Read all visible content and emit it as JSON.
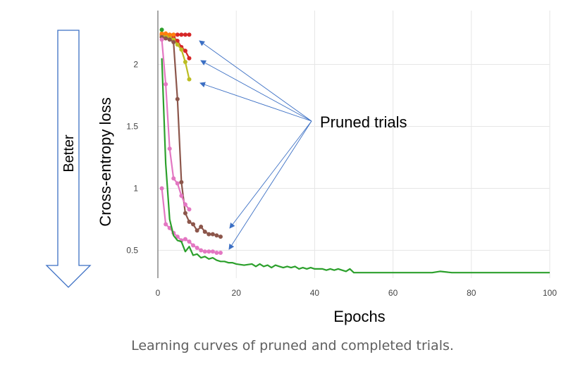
{
  "caption": "Learning curves of pruned and completed trials.",
  "better_label": "Better",
  "annotation": "Pruned trials",
  "chart_data": {
    "type": "line",
    "title": "",
    "xlabel": "Epochs",
    "ylabel": "Cross-entropy loss",
    "xlim": [
      0,
      100
    ],
    "ylim": [
      0.3,
      2.35
    ],
    "grid": true,
    "x_ticks": [
      0,
      20,
      40,
      60,
      80,
      100
    ],
    "y_ticks": [
      0.5,
      1,
      1.5,
      2
    ],
    "x_tick_labels": [
      "0",
      "20",
      "40",
      "60",
      "80",
      "100"
    ],
    "y_tick_labels": [
      "0.5",
      "1",
      "1.5",
      "2"
    ],
    "series": [
      {
        "color": "#d62728",
        "markers": true,
        "x": [
          1,
          2,
          3,
          4,
          5,
          6,
          7,
          8
        ],
        "y": [
          2.24,
          2.24,
          2.24,
          2.24,
          2.24,
          2.24,
          2.24,
          2.24
        ]
      },
      {
        "color": "#d62728",
        "markers": true,
        "x": [
          1,
          2,
          3,
          4,
          5,
          6,
          7,
          8
        ],
        "y": [
          2.22,
          2.22,
          2.22,
          2.22,
          2.19,
          2.14,
          2.11,
          2.05
        ]
      },
      {
        "color": "#bcbd22",
        "markers": true,
        "x": [
          1,
          2,
          3,
          4,
          5,
          6,
          7,
          8
        ],
        "y": [
          2.23,
          2.23,
          2.22,
          2.2,
          2.16,
          2.12,
          2.02,
          1.88
        ]
      },
      {
        "color": "#ff7f0e",
        "markers": true,
        "x": [
          1,
          2,
          3,
          4
        ],
        "y": [
          2.25,
          2.25,
          2.24,
          2.24
        ]
      },
      {
        "color": "#2ca02c",
        "markers": true,
        "x": [
          1
        ],
        "y": [
          2.28
        ]
      },
      {
        "color": "#8c564b",
        "markers": true,
        "x": [
          1,
          2,
          3,
          4,
          5,
          6,
          7,
          8,
          9,
          10,
          11,
          12,
          13,
          14,
          15,
          16
        ],
        "y": [
          2.22,
          2.21,
          2.2,
          2.18,
          1.72,
          1.05,
          0.8,
          0.73,
          0.71,
          0.66,
          0.69,
          0.65,
          0.63,
          0.63,
          0.62,
          0.61
        ]
      },
      {
        "color": "#e377c2",
        "markers": true,
        "x": [
          1,
          2,
          3,
          4,
          5,
          6,
          7,
          8,
          9,
          10,
          11,
          12,
          13,
          14,
          15,
          16
        ],
        "y": [
          1.0,
          0.71,
          0.68,
          0.64,
          0.61,
          0.58,
          0.59,
          0.57,
          0.54,
          0.52,
          0.5,
          0.49,
          0.49,
          0.49,
          0.48,
          0.48
        ]
      },
      {
        "color": "#e377c2",
        "markers": true,
        "x": [
          1,
          2,
          3,
          4,
          5,
          6,
          7,
          8
        ],
        "y": [
          2.2,
          1.84,
          1.32,
          1.08,
          1.04,
          0.94,
          0.87,
          0.83
        ]
      },
      {
        "color": "#2ca02c",
        "markers": false,
        "x": [
          1,
          2,
          3,
          4,
          5,
          6,
          7,
          8,
          9,
          10,
          11,
          12,
          13,
          14,
          15,
          16,
          17,
          18,
          19,
          20,
          22,
          24,
          25,
          26,
          27,
          28,
          29,
          30,
          31,
          32,
          33,
          34,
          35,
          36,
          37,
          38,
          39,
          40,
          41,
          42,
          43,
          44,
          45,
          46,
          47,
          48,
          49,
          50,
          52,
          55,
          60,
          65,
          70,
          72,
          75,
          80,
          85,
          90,
          95,
          100
        ],
        "y": [
          2.05,
          1.2,
          0.75,
          0.62,
          0.58,
          0.57,
          0.49,
          0.53,
          0.46,
          0.47,
          0.44,
          0.45,
          0.43,
          0.44,
          0.42,
          0.41,
          0.41,
          0.4,
          0.4,
          0.39,
          0.38,
          0.39,
          0.37,
          0.39,
          0.37,
          0.38,
          0.36,
          0.38,
          0.37,
          0.36,
          0.37,
          0.36,
          0.37,
          0.35,
          0.36,
          0.35,
          0.36,
          0.35,
          0.35,
          0.35,
          0.34,
          0.35,
          0.34,
          0.35,
          0.34,
          0.33,
          0.35,
          0.32,
          0.32,
          0.32,
          0.32,
          0.32,
          0.32,
          0.33,
          0.32,
          0.32,
          0.32,
          0.32,
          0.32,
          0.32
        ]
      }
    ]
  }
}
